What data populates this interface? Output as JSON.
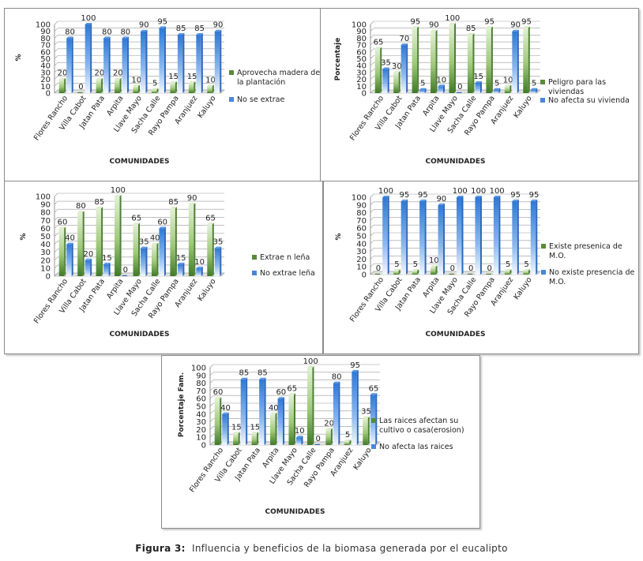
{
  "figure": {
    "label": "Figura 3",
    "caption": "Influencia y beneficios de la biomasa generada por el eucalipto"
  },
  "colors": {
    "green_series": "#5a8a3a",
    "blue_series": "#4a86d8",
    "grid": "#9a9a9a",
    "panel_border": "#8a8a8a"
  },
  "chart_data": [
    {
      "type": "bar",
      "ylabel": "%",
      "xlabel": "COMUNIDADES",
      "ylim": [
        0,
        100
      ],
      "yticks": [
        0,
        10,
        20,
        30,
        40,
        50,
        60,
        70,
        80,
        90,
        100
      ],
      "grid": true,
      "legend_position": "right",
      "categories": [
        "Flores Rancho",
        "Villa Cabot",
        "Jatan Pata",
        "Arpita",
        "Llave Mayo",
        "Sacha Calle",
        "Rayo Pampa",
        "Aranjuez",
        "Kaluyo"
      ],
      "series": [
        {
          "name": "Aprovecha madera de la plantación",
          "color": "green",
          "values": [
            20,
            0,
            20,
            20,
            10,
            5,
            15,
            15,
            10
          ]
        },
        {
          "name": "No se extrae",
          "color": "blue",
          "values": [
            80,
            100,
            80,
            80,
            90,
            95,
            85,
            85,
            90
          ]
        }
      ]
    },
    {
      "type": "bar",
      "ylabel": "Porcentaje",
      "xlabel": "COMUNIDADES",
      "ylim": [
        0,
        100
      ],
      "yticks": [
        0,
        10,
        20,
        30,
        40,
        50,
        60,
        70,
        80,
        90,
        100
      ],
      "grid": true,
      "legend_position": "right",
      "categories": [
        "Flores Rancho",
        "Villa Cabot",
        "Jatan Pata",
        "Arpita",
        "Llave Mayo",
        "Sacha Calle",
        "Rayo Pampa",
        "Aranjuez",
        "Kaluyo"
      ],
      "series": [
        {
          "name": "Peligro para las viviendas",
          "color": "green",
          "values": [
            65,
            30,
            95,
            90,
            100,
            85,
            95,
            10,
            95
          ]
        },
        {
          "name": "No afecta su vivienda",
          "color": "blue",
          "values": [
            35,
            70,
            5,
            10,
            0,
            15,
            5,
            90,
            5
          ]
        }
      ]
    },
    {
      "type": "bar",
      "ylabel": "%",
      "xlabel": "COMUNIDADES",
      "ylim": [
        0,
        100
      ],
      "yticks": [
        0,
        10,
        20,
        30,
        40,
        50,
        60,
        70,
        80,
        90,
        100
      ],
      "grid": true,
      "legend_position": "right",
      "categories": [
        "Flores Rancho",
        "Villa Cabot",
        "Jatan Pata",
        "Arpita",
        "Llave Mayo",
        "Sacha Calle",
        "Rayo Pampa",
        "Aranjuez",
        "Kaluyo"
      ],
      "series": [
        {
          "name": "Extrae n leña",
          "color": "green",
          "values": [
            60,
            80,
            85,
            100,
            65,
            40,
            85,
            90,
            65
          ]
        },
        {
          "name": "No extrae leña",
          "color": "blue",
          "values": [
            40,
            20,
            15,
            0,
            35,
            60,
            15,
            10,
            35
          ]
        }
      ]
    },
    {
      "type": "bar",
      "ylabel": "%",
      "xlabel": "COMUNIDADES",
      "ylim": [
        0,
        100
      ],
      "yticks": [
        0,
        10,
        20,
        30,
        40,
        50,
        60,
        70,
        80,
        90,
        100
      ],
      "grid": true,
      "legend_position": "right",
      "categories": [
        "Flores Rancho",
        "Villa Cabot",
        "Jatan Pata",
        "Arpita",
        "Llave Mayo",
        "Sacha Calle",
        "Rayo Pampa",
        "Aranjuez",
        "Kaluyo"
      ],
      "series": [
        {
          "name": "Existe presenica de M.O.",
          "color": "green",
          "values": [
            0,
            5,
            5,
            10,
            0,
            0,
            0,
            5,
            5
          ]
        },
        {
          "name": "No existe presencia de M.O.",
          "color": "blue",
          "values": [
            100,
            95,
            95,
            90,
            100,
            100,
            100,
            95,
            95
          ]
        }
      ]
    },
    {
      "type": "bar",
      "ylabel": "Porcentaje Fam.",
      "xlabel": "COMUNIDADES",
      "ylim": [
        0,
        100
      ],
      "yticks": [
        0,
        10,
        20,
        30,
        40,
        50,
        60,
        70,
        80,
        90,
        100
      ],
      "grid": true,
      "legend_position": "right",
      "categories": [
        "Flores Rancho",
        "Villa Cabot",
        "Jatan Pata",
        "Arpita",
        "Llave Mayo",
        "Sacha Calle",
        "Rayo Pampa",
        "Aranjuez",
        "Kaluyo"
      ],
      "series": [
        {
          "name": "Las raices afectan su cultivo o casa(erosion)",
          "color": "green",
          "values": [
            60,
            15,
            15,
            40,
            65,
            100,
            20,
            5,
            35
          ]
        },
        {
          "name": "No afecta las raices",
          "color": "blue",
          "values": [
            40,
            85,
            85,
            60,
            10,
            0,
            80,
            95,
            65
          ]
        }
      ]
    }
  ]
}
